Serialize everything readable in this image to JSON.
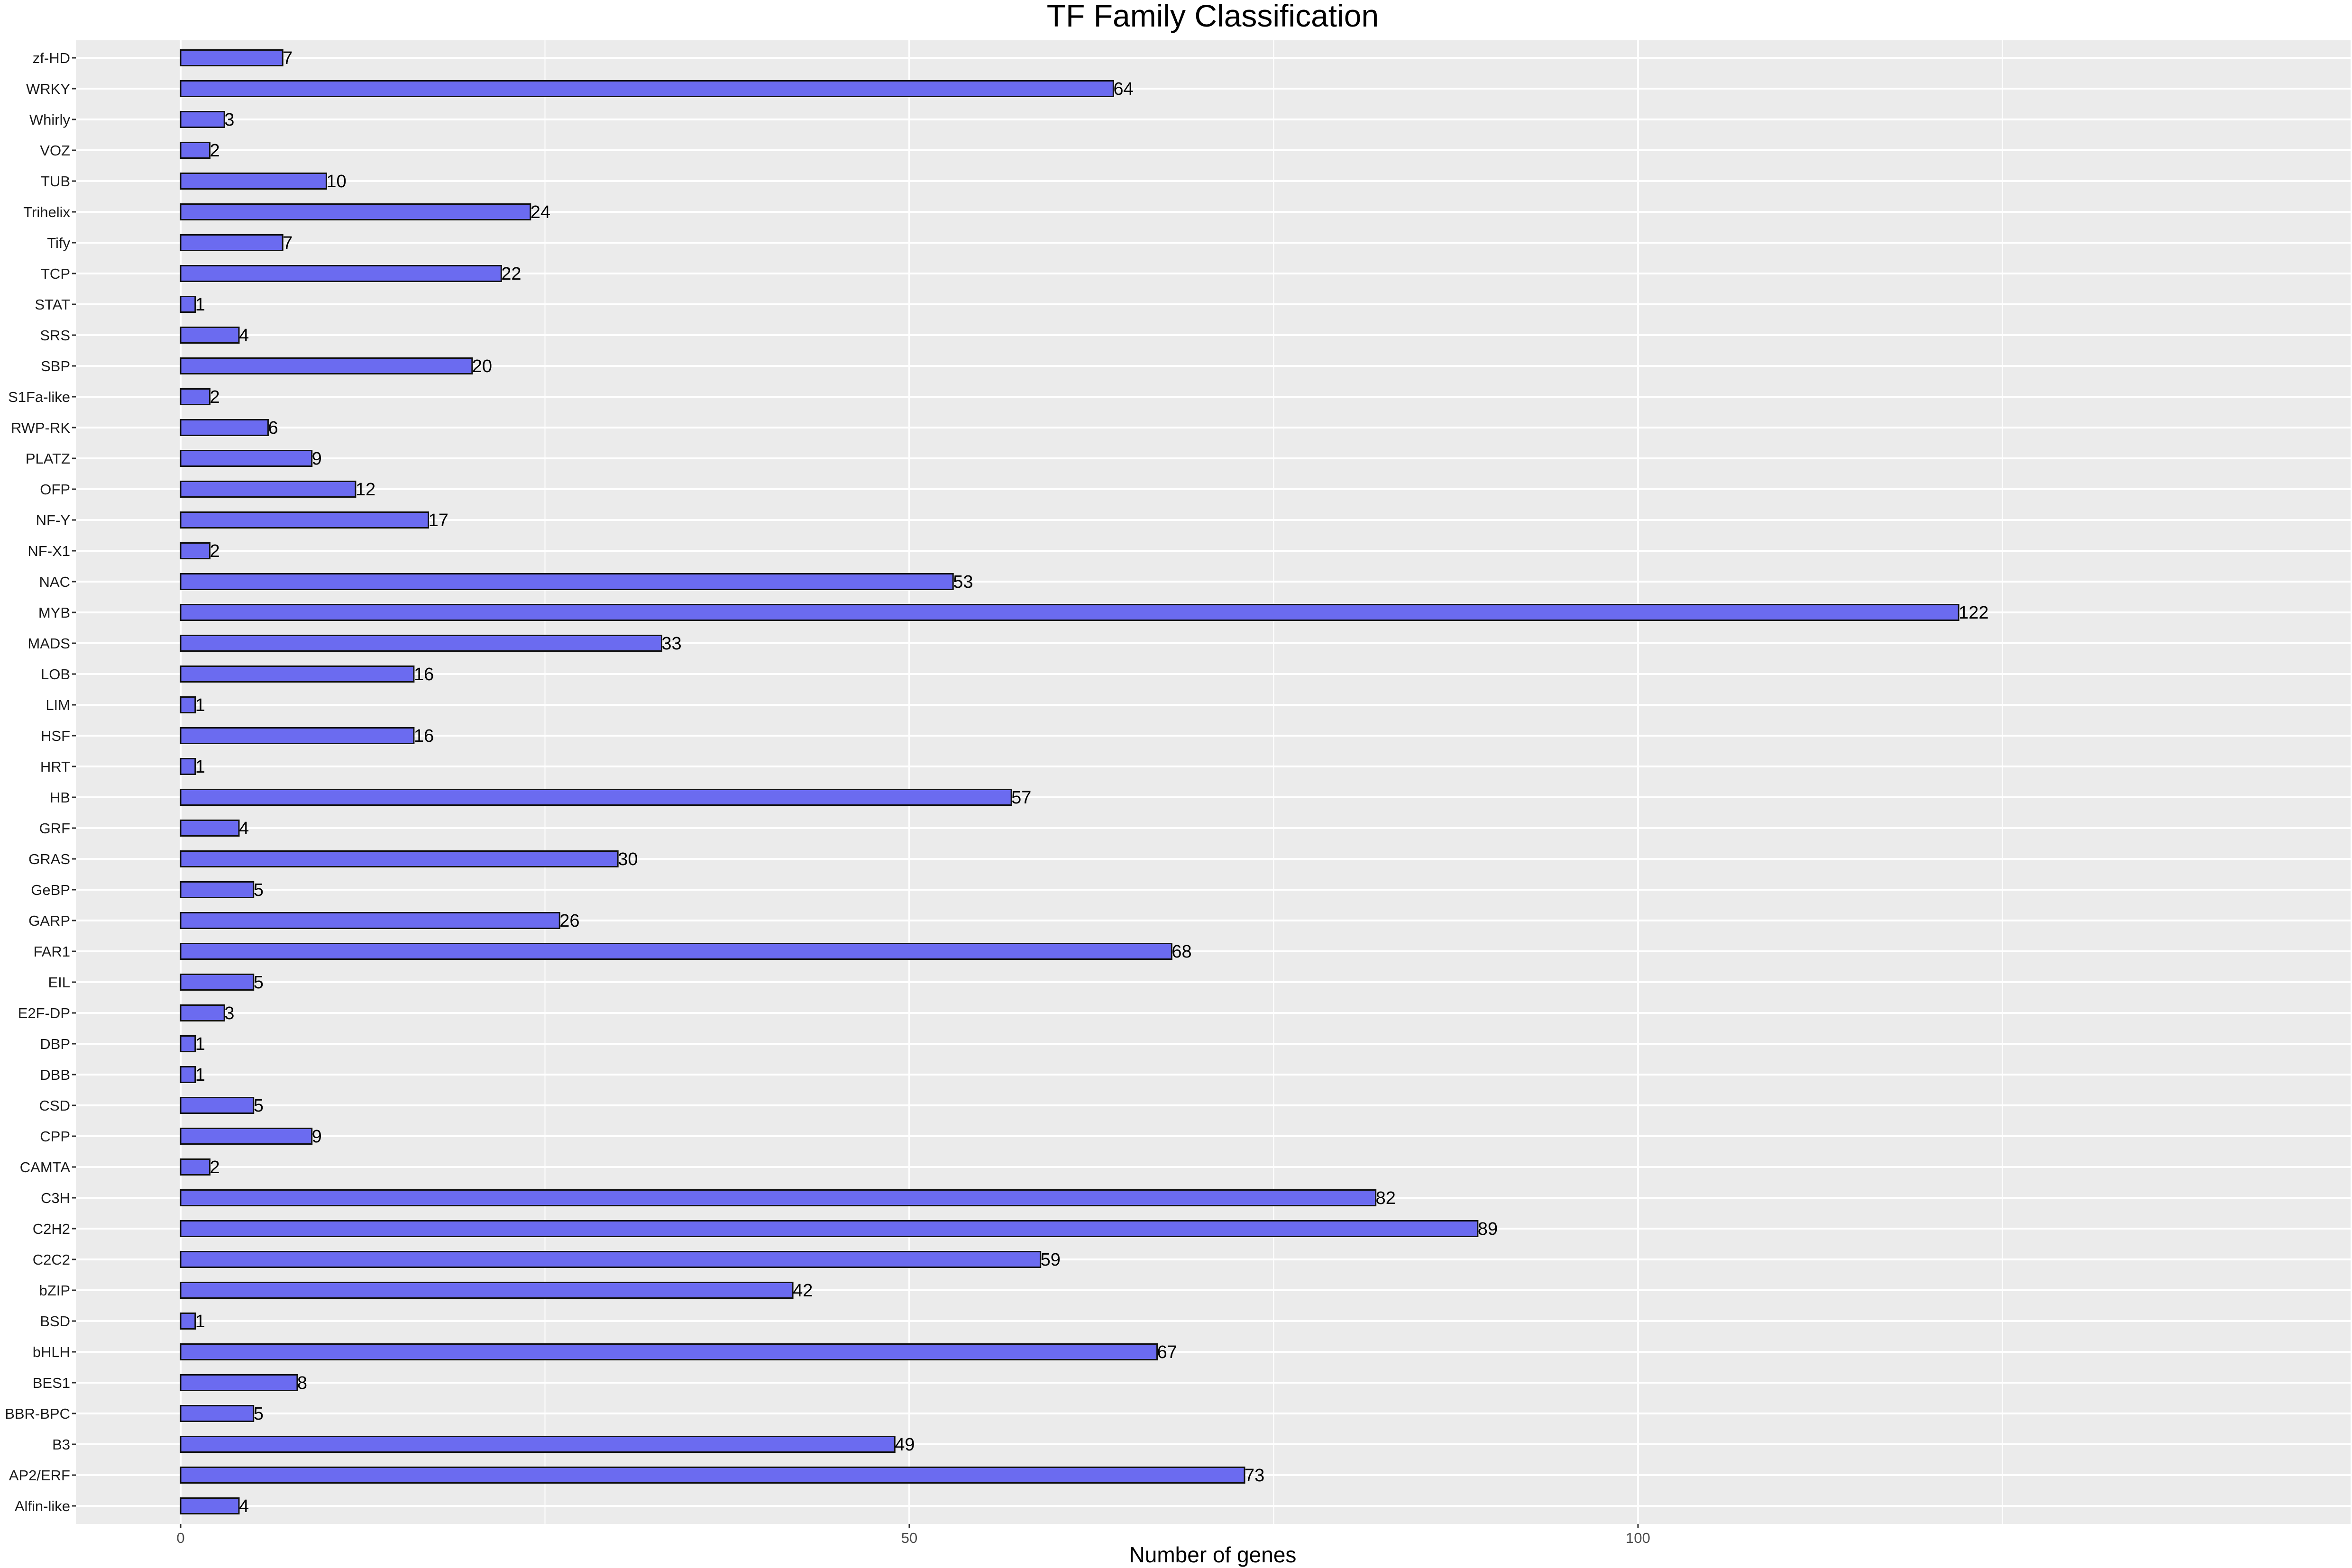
{
  "chart_data": {
    "type": "bar",
    "orientation": "horizontal",
    "title": "TF Family Classification",
    "xlabel": "Number of genes",
    "ylabel": "",
    "xlim": [
      -7,
      148
    ],
    "xticks": [
      0,
      50,
      100
    ],
    "grid": true,
    "colors": {
      "bar_fill": "#6b6bf0",
      "bar_stroke": "#111111",
      "panel_bg": "#ebebeb",
      "grid": "#ffffff"
    },
    "categories": [
      "zf-HD",
      "WRKY",
      "Whirly",
      "VOZ",
      "TUB",
      "Trihelix",
      "Tify",
      "TCP",
      "STAT",
      "SRS",
      "SBP",
      "S1Fa-like",
      "RWP-RK",
      "PLATZ",
      "OFP",
      "NF-Y",
      "NF-X1",
      "NAC",
      "MYB",
      "MADS",
      "LOB",
      "LIM",
      "HSF",
      "HRT",
      "HB",
      "GRF",
      "GRAS",
      "GeBP",
      "GARP",
      "FAR1",
      "EIL",
      "E2F-DP",
      "DBP",
      "DBB",
      "CSD",
      "CPP",
      "CAMTA",
      "C3H",
      "C2H2",
      "C2C2",
      "bZIP",
      "BSD",
      "bHLH",
      "BES1",
      "BBR-BPC",
      "B3",
      "AP2/ERF",
      "Alfin-like"
    ],
    "values": [
      7,
      64,
      3,
      2,
      10,
      24,
      7,
      22,
      1,
      4,
      20,
      2,
      6,
      9,
      12,
      17,
      2,
      53,
      122,
      33,
      16,
      1,
      16,
      1,
      57,
      4,
      30,
      5,
      26,
      68,
      5,
      3,
      1,
      1,
      5,
      9,
      2,
      82,
      89,
      59,
      42,
      1,
      67,
      8,
      5,
      49,
      73,
      4
    ]
  }
}
